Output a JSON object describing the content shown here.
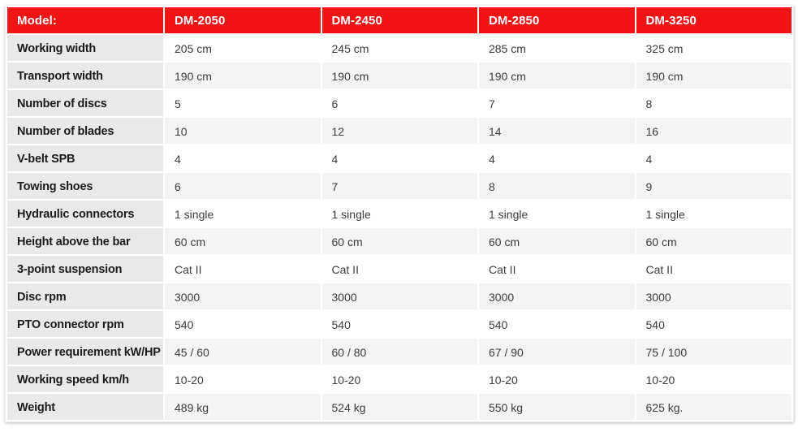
{
  "table": {
    "header": {
      "label": "Model:",
      "columns": [
        "DM-2050",
        "DM-2450",
        "DM-2850",
        "DM-3250"
      ]
    },
    "rows": [
      {
        "label": "Working width",
        "values": [
          "205 cm",
          "245 cm",
          "285 cm",
          "325 cm"
        ]
      },
      {
        "label": "Transport width",
        "values": [
          "190 cm",
          "190 cm",
          "190 cm",
          "190 cm"
        ]
      },
      {
        "label": "Number of discs",
        "values": [
          "5",
          "6",
          "7",
          "8"
        ]
      },
      {
        "label": "Number of blades",
        "values": [
          "10",
          "12",
          "14",
          "16"
        ]
      },
      {
        "label": "V-belt SPB",
        "values": [
          "4",
          "4",
          "4",
          "4"
        ]
      },
      {
        "label": "Towing shoes",
        "values": [
          "6",
          "7",
          "8",
          "9"
        ]
      },
      {
        "label": "Hydraulic connectors",
        "values": [
          "1 single",
          "1 single",
          "1 single",
          "1 single"
        ]
      },
      {
        "label": "Height above the bar",
        "values": [
          "60 cm",
          "60 cm",
          "60 cm",
          "60 cm"
        ]
      },
      {
        "label": "3-point suspension",
        "values": [
          "Cat II",
          "Cat II",
          "Cat II",
          "Cat II"
        ]
      },
      {
        "label": "Disc rpm",
        "values": [
          "3000",
          "3000",
          "3000",
          "3000"
        ]
      },
      {
        "label": "PTO connector rpm",
        "values": [
          "540",
          "540",
          "540",
          "540"
        ]
      },
      {
        "label": "Power requirement kW/HP",
        "values": [
          "45 / 60",
          "60 / 80",
          "67 / 90",
          "75 / 100"
        ]
      },
      {
        "label": "Working speed km/h",
        "values": [
          "10-20",
          "10-20",
          "10-20",
          "10-20"
        ]
      },
      {
        "label": "Weight",
        "values": [
          "489 kg",
          "524 kg",
          "550 kg",
          "625 kg."
        ]
      }
    ],
    "colors": {
      "header_bg": "#f11414",
      "header_text": "#ffffff",
      "label_cell_bg": "#e9e9e9",
      "row_alt_bg": "#f4f4f4"
    }
  }
}
